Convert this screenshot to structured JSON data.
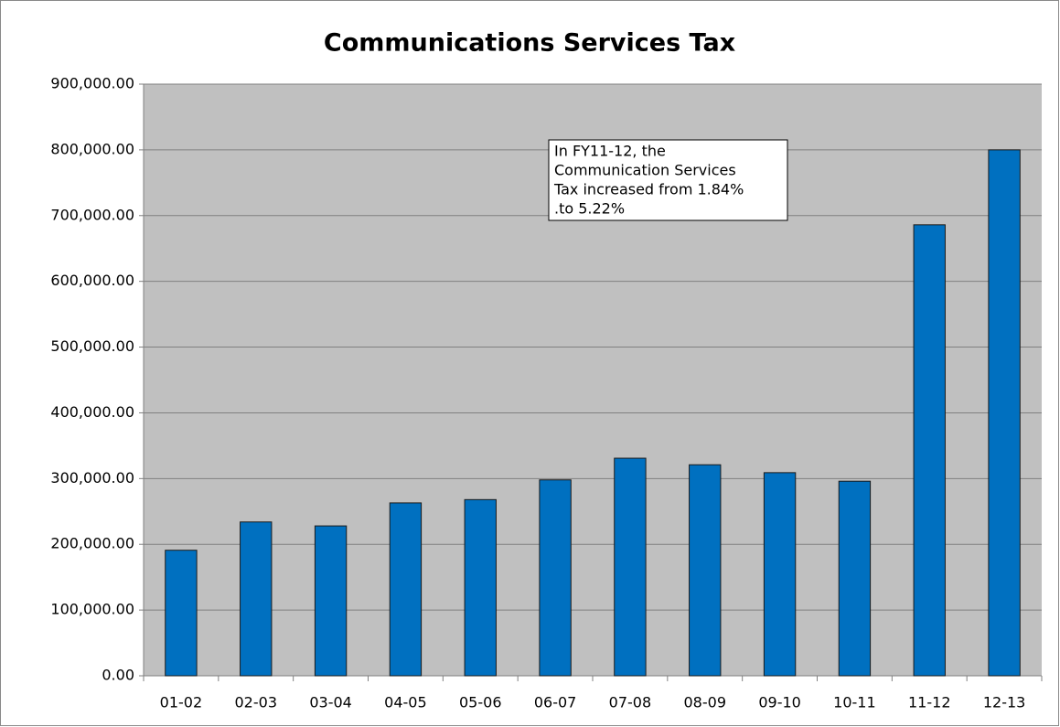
{
  "chart_data": {
    "type": "bar",
    "title": "Communications Services Tax",
    "categories": [
      "01-02",
      "02-03",
      "03-04",
      "04-05",
      "05-06",
      "06-07",
      "07-08",
      "08-09",
      "09-10",
      "10-11",
      "11-12",
      "12-13"
    ],
    "values": [
      191000,
      234000,
      228000,
      263000,
      268000,
      298000,
      331000,
      321000,
      309000,
      296000,
      686000,
      800000
    ],
    "color": "#0070c0",
    "ylim": [
      0,
      900000
    ],
    "yticks": [
      {
        "value": 0,
        "label": "0.00"
      },
      {
        "value": 100000,
        "label": "100,000.00"
      },
      {
        "value": 200000,
        "label": "200,000.00"
      },
      {
        "value": 300000,
        "label": "300,000.00"
      },
      {
        "value": 400000,
        "label": "400,000.00"
      },
      {
        "value": 500000,
        "label": "500,000.00"
      },
      {
        "value": 600000,
        "label": "600,000.00"
      },
      {
        "value": 700000,
        "label": "700,000.00"
      },
      {
        "value": 800000,
        "label": "800,000.00"
      },
      {
        "value": 900000,
        "label": "900,000.00"
      }
    ],
    "grid": true,
    "annotation": [
      "In FY11-12, the",
      "Communication Services",
      "Tax increased from 1.84%",
      ".to 5.22%"
    ]
  }
}
